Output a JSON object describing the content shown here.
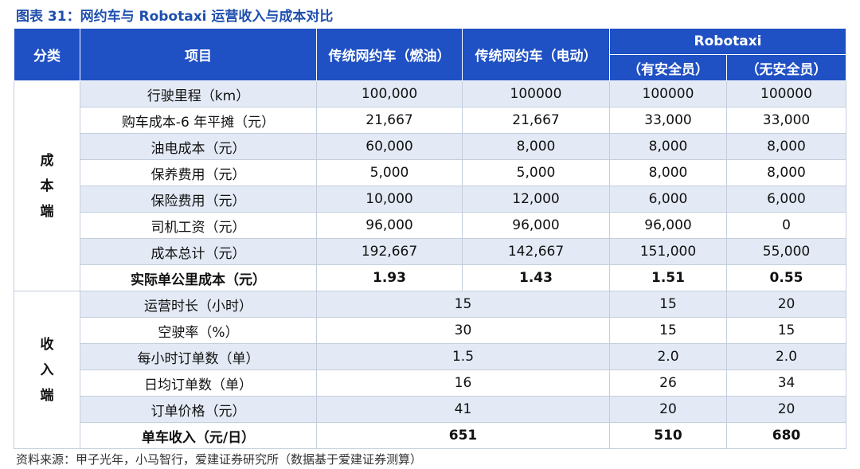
{
  "title": "图表 31：网约车与 Robotaxi 运营收入与成本对比",
  "header": {
    "category": "分类",
    "item": "项目",
    "col1": "传统网约车（燃油）",
    "col2": "传统网约车（电动）",
    "robotaxi": "Robotaxi",
    "sub1": "（有安全员）",
    "sub2": "（无安全员）"
  },
  "cost_section": {
    "label": "成本端",
    "rows": [
      [
        "行驶里程（km）",
        "100,000",
        "100000",
        "100000",
        "100000"
      ],
      [
        "购车成本-6 年平摊（元）",
        "21,667",
        "21,667",
        "33,000",
        "33,000"
      ],
      [
        "油电成本（元）",
        "60,000",
        "8,000",
        "8,000",
        "8,000"
      ],
      [
        "保养费用（元）",
        "5,000",
        "5,000",
        "8,000",
        "8,000"
      ],
      [
        "保险费用（元）",
        "10,000",
        "12,000",
        "6,000",
        "6,000"
      ],
      [
        "司机工资（元）",
        "96,000",
        "96,000",
        "96,000",
        "0"
      ],
      [
        "成本总计（元）",
        "192,667",
        "142,667",
        "151,000",
        "55,000"
      ],
      [
        "实际单公里成本（元）",
        "1.93",
        "1.43",
        "1.51",
        "0.55"
      ]
    ]
  },
  "revenue_section": {
    "label": "收入端",
    "rows": [
      [
        "运营时长（小时）",
        "15",
        "15",
        "20"
      ],
      [
        "空驶率（%）",
        "30",
        "15",
        "15"
      ],
      [
        "每小时订单数（单）",
        "1.5",
        "2.0",
        "2.0"
      ],
      [
        "日均订单数（单）",
        "16",
        "26",
        "34"
      ],
      [
        "订单价格（元）",
        "41",
        "20",
        "20"
      ],
      [
        "单车收入（元/日）",
        "651",
        "510",
        "680"
      ]
    ]
  },
  "source": "资料来源：甲子光年，小马智行，爱建证券研究所（数据基于爱建证券测算）"
}
